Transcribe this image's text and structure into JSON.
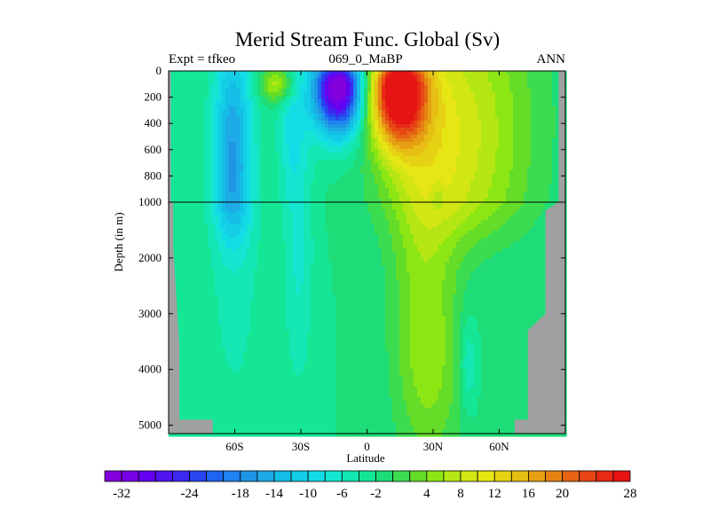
{
  "chart_data": {
    "type": "heatmap",
    "title": "Merid Stream Func. Global (Sv)",
    "left_string": "Expt = tfkeo",
    "center_string": "069_0_MaBP",
    "right_string": "ANN",
    "xlabel": "Latitude",
    "ylabel": "Depth (in m)",
    "xlim": [
      -90,
      90
    ],
    "x_ticks": [
      {
        "value": -60,
        "label": "60S"
      },
      {
        "value": -30,
        "label": "30S"
      },
      {
        "value": 0,
        "label": "0"
      },
      {
        "value": 30,
        "label": "30N"
      },
      {
        "value": 60,
        "label": "60N"
      }
    ],
    "y_upper": {
      "range": [
        0,
        1000
      ],
      "ticks": [
        {
          "value": 0,
          "label": "0"
        },
        {
          "value": 200,
          "label": "200"
        },
        {
          "value": 400,
          "label": "400"
        },
        {
          "value": 600,
          "label": "600"
        },
        {
          "value": 800,
          "label": "800"
        },
        {
          "value": 1000,
          "label": "1000"
        }
      ]
    },
    "y_lower": {
      "range": [
        1000,
        5000
      ],
      "ticks": [
        {
          "value": 2000,
          "label": "2000"
        },
        {
          "value": 3000,
          "label": "3000"
        },
        {
          "value": 4000,
          "label": "4000"
        },
        {
          "value": 5000,
          "label": "5000"
        }
      ]
    },
    "y_max": 5150,
    "contour_levels": [
      -32,
      -30,
      -28,
      -26,
      -24,
      -22,
      -20,
      -18,
      -16,
      -14,
      -12,
      -10,
      -8,
      -6,
      -4,
      -2,
      0,
      2,
      4,
      6,
      8,
      10,
      12,
      14,
      16,
      18,
      20,
      22,
      24,
      26,
      28,
      30
    ],
    "colorbar_labels": [
      -32,
      -24,
      -18,
      -14,
      -10,
      -6,
      -2,
      4,
      8,
      12,
      16,
      20,
      28
    ],
    "colors": [
      "#8200dc",
      "#7800e6",
      "#6400f0",
      "#5014f0",
      "#3c28f0",
      "#2846f0",
      "#1e64f0",
      "#1e82f0",
      "#1e96e6",
      "#1eaae6",
      "#14bee6",
      "#14cde6",
      "#14dce6",
      "#14e6d2",
      "#14e6b4",
      "#14e696",
      "#1edc78",
      "#3cdc50",
      "#64dc28",
      "#8ce614",
      "#b4e614",
      "#d2e614",
      "#e6e614",
      "#e6d214",
      "#e6be14",
      "#e6a014",
      "#e68214",
      "#e66414",
      "#e64614",
      "#e62814",
      "#e61414"
    ],
    "land_color": "#a0a0a0",
    "features": [
      {
        "x": 14,
        "d": 140,
        "sx": 9,
        "sdu": 180,
        "sdl": 300,
        "amp": 31
      },
      {
        "x": 26,
        "d": 2500,
        "sx": 11,
        "sdu": 2000,
        "sdl": 2000,
        "amp": 6
      },
      {
        "x": 40,
        "d": 650,
        "sx": 22,
        "sdu": 800,
        "sdl": 800,
        "amp": 6.5
      },
      {
        "x": 45,
        "d": 200,
        "sx": 25,
        "sdu": 900,
        "sdl": 900,
        "amp": 4.5
      },
      {
        "x": 30,
        "d": 4200,
        "sx": 11,
        "sdu": 1200,
        "sdl": 1200,
        "amp": 3
      },
      {
        "x": -13,
        "d": 120,
        "sx": 8,
        "sdu": 150,
        "sdl": 250,
        "amp": -34
      },
      {
        "x": -61,
        "d": 700,
        "sx": 6,
        "sdu": 700,
        "sdl": 700,
        "amp": -12
      },
      {
        "x": -60,
        "d": 2000,
        "sx": 9,
        "sdu": 2300,
        "sdl": 2300,
        "amp": -3
      },
      {
        "x": -31,
        "d": 1700,
        "sx": 5,
        "sdu": 1900,
        "sdl": 1900,
        "amp": -4.5
      },
      {
        "x": -35,
        "d": 400,
        "sx": 4,
        "sdu": 400,
        "sdl": 400,
        "amp": -4
      },
      {
        "x": -40,
        "d": 100,
        "sx": 6,
        "sdu": 100,
        "sdl": 100,
        "amp": 10
      },
      {
        "x": 46,
        "d": 3900,
        "sx": 3,
        "sdu": 600,
        "sdl": 600,
        "amp": -5
      },
      {
        "x": 32,
        "d": 1000,
        "sx": 2,
        "sdu": 100,
        "sdl": 100,
        "amp": -4
      }
    ],
    "land_left": [
      [
        0,
        -89
      ],
      [
        1000,
        -89
      ],
      [
        1000,
        -87.9
      ],
      [
        1800,
        -87.9
      ],
      [
        3600,
        -85.1
      ],
      [
        3650,
        -85.1
      ],
      [
        4900,
        -85.1
      ],
      [
        5150,
        -85.1
      ]
    ],
    "land_right": [
      [
        0,
        87
      ],
      [
        1000,
        87
      ],
      [
        1150,
        81
      ],
      [
        3000,
        81
      ],
      [
        3300,
        73
      ],
      [
        4900,
        73
      ],
      [
        5150,
        73
      ]
    ],
    "land_left_extra": [
      [
        4900,
        -85.1
      ],
      [
        4900,
        -70
      ],
      [
        5150,
        -70
      ],
      [
        5150,
        -85.1
      ]
    ],
    "land_right_extra": [
      [
        4900,
        73
      ],
      [
        4900,
        67
      ],
      [
        5150,
        67
      ],
      [
        5150,
        73
      ]
    ]
  }
}
